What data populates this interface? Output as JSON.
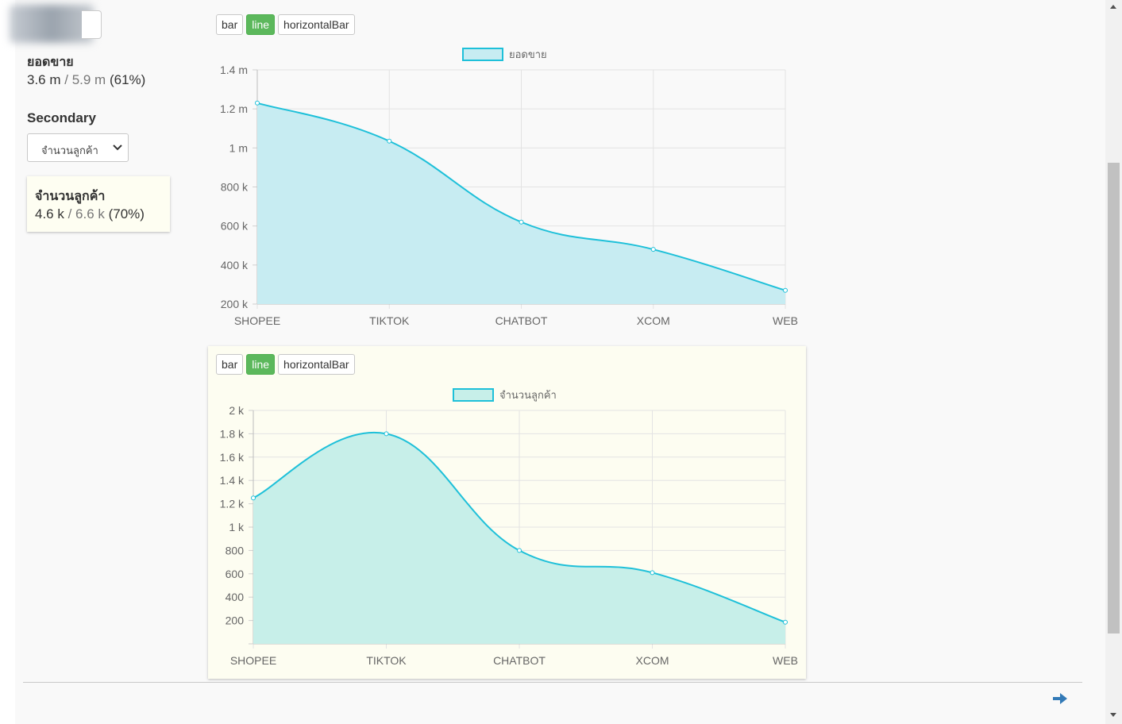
{
  "sidebar": {
    "primary": {
      "title": "ยอดขาย",
      "value": "3.6 m",
      "separator": " / ",
      "target": "5.9 m",
      "percent": " (61%)"
    },
    "secondary_label": "Secondary",
    "secondary_select": {
      "value": "จำนวนลูกค้า"
    },
    "secondary_card": {
      "title": "จำนวนลูกค้า",
      "value": "4.6 k",
      "separator": " / ",
      "target": "6.6 k",
      "percent": " (70%)"
    }
  },
  "chart_buttons": {
    "bar": "bar",
    "line": "line",
    "horizontal": "horizontalBar",
    "active": "line"
  },
  "colors": {
    "line": "#1ec0d9",
    "area1": "#c7ecf2",
    "area2": "#c7efe9",
    "active_button": "#5cb85c",
    "arrow": "#337ab7"
  },
  "chart_data": [
    {
      "type": "line",
      "title": "",
      "legend": [
        "ยอดขาย"
      ],
      "legend_position": "top",
      "categories": [
        "SHOPEE",
        "TIKTOK",
        "CHATBOT",
        "XCOM",
        "WEB"
      ],
      "series": [
        {
          "name": "ยอดขาย",
          "values": [
            1230000,
            1035000,
            620000,
            480000,
            270000
          ]
        }
      ],
      "ylim": [
        200000,
        1400000
      ],
      "yticks": [
        200000,
        400000,
        600000,
        800000,
        1000000,
        1200000,
        1400000
      ],
      "ytick_labels": [
        "200 k",
        "400 k",
        "600 k",
        "800 k",
        "1 m",
        "1.2 m",
        "1.4 m"
      ],
      "grid": true,
      "filled": true
    },
    {
      "type": "line",
      "title": "",
      "legend": [
        "จำนวนลูกค้า"
      ],
      "legend_position": "top",
      "categories": [
        "SHOPEE",
        "TIKTOK",
        "CHATBOT",
        "XCOM",
        "WEB"
      ],
      "series": [
        {
          "name": "จำนวนลูกค้า",
          "values": [
            1250,
            1800,
            800,
            610,
            185
          ]
        }
      ],
      "ylim": [
        0,
        2000
      ],
      "yticks": [
        200,
        400,
        600,
        800,
        1000,
        1200,
        1400,
        1600,
        1800,
        2000
      ],
      "ytick_labels": [
        "200",
        "400",
        "600",
        "800",
        "1 k",
        "1.2 k",
        "1.4 k",
        "1.6 k",
        "1.8 k",
        "2 k"
      ],
      "grid": true,
      "filled": true
    }
  ]
}
